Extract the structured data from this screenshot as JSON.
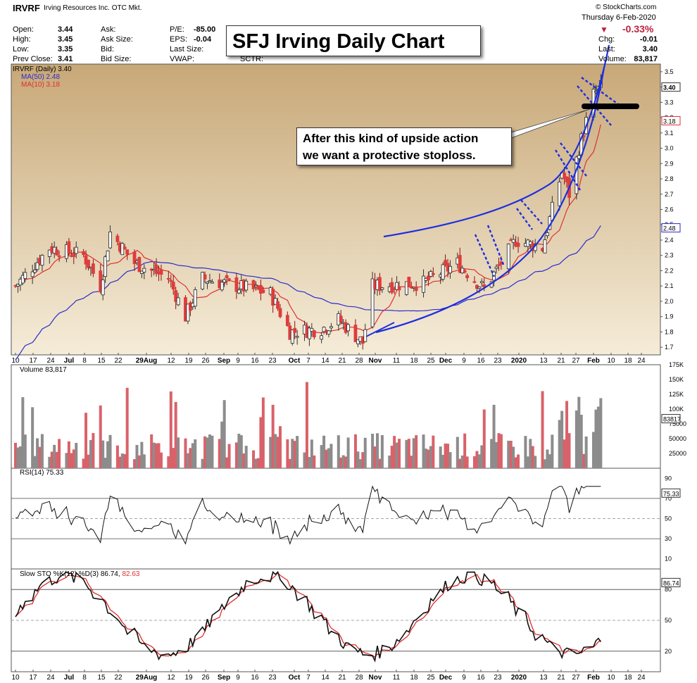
{
  "header": {
    "symbol": "IRVRF",
    "company": "Irving Resources Inc.  OTC Mkt.",
    "source": "© StockCharts.com",
    "date": "Thursday   6-Feb-2020",
    "change_pct": "-0.33%",
    "stats_left": [
      {
        "label": "Open:",
        "value": "3.44"
      },
      {
        "label": "High:",
        "value": "3.45"
      },
      {
        "label": "Low:",
        "value": "3.35"
      },
      {
        "label": "Prev Close:",
        "value": "3.41"
      }
    ],
    "stats_mid": [
      {
        "label": "Ask:",
        "value": ""
      },
      {
        "label": "Ask Size:",
        "value": ""
      },
      {
        "label": "Bid:",
        "value": ""
      },
      {
        "label": "Bid Size:",
        "value": ""
      }
    ],
    "stats_mid2": [
      {
        "label": "P/E:",
        "value": "-85.00"
      },
      {
        "label": "EPS:",
        "value": "-0.04"
      },
      {
        "label": "Last Size:",
        "value": ""
      },
      {
        "label": "VWAP:",
        "value": ""
      }
    ],
    "sctr_label": "SCTR:",
    "stats_right": [
      {
        "label": "Chg:",
        "value": "-0.01"
      },
      {
        "label": "Last:",
        "value": "3.40"
      },
      {
        "label": "Volume:",
        "value": "83,817"
      }
    ]
  },
  "title": "SFJ Irving Daily Chart",
  "annotation": [
    "After this kind of upside action",
    "we want a protective stoploss."
  ],
  "legend": {
    "main": "IRVRF (Daily) 3.40",
    "ma50": "MA(50) 2.48",
    "ma10": "MA(10) 3.18",
    "volume": "Volume 83,817",
    "rsi": "RSI(14) 75.33",
    "sto_prefix": "Slow STO %K(12) %D(3) 86.74, ",
    "sto_d": "82.63"
  },
  "price_badges": {
    "last": "3.40",
    "ma10": "3.18",
    "ma50": "2.48",
    "volume": "83817",
    "rsi": "75.33",
    "sto": "86.74"
  },
  "colors": {
    "up": "#808080",
    "down": "#e03c3c",
    "ma50": "#2b2bcc",
    "ma10": "#e03030",
    "trend": "#1c2ee0",
    "bg_top": "#c8a878",
    "bg_bottom": "#f5ecd8"
  },
  "x_axis_labels": [
    "10",
    "17",
    "24",
    "Jul",
    "8",
    "15",
    "22",
    "29Aug",
    "12",
    "19",
    "26",
    "Sep",
    "9",
    "16",
    "23",
    "Oct",
    "7",
    "14",
    "21",
    "28",
    "Nov",
    "11",
    "18",
    "25",
    "Dec",
    "9",
    "16",
    "23",
    "2020",
    "13",
    "21",
    "27",
    "Feb",
    "10",
    "18",
    "24"
  ],
  "price_ticks": [
    "3.5",
    "3.4",
    "3.3",
    "3.2",
    "3.1",
    "3.0",
    "2.9",
    "2.8",
    "2.7",
    "2.6",
    "2.5",
    "2.4",
    "2.3",
    "2.2",
    "2.1",
    "2.0",
    "1.9",
    "1.8",
    "1.7"
  ],
  "volume_ticks": [
    "175K",
    "150K",
    "125K",
    "100K",
    "75000",
    "50000",
    "25000"
  ],
  "rsi_ticks": [
    "90",
    "70",
    "50",
    "30",
    "10"
  ],
  "sto_ticks": [
    "80",
    "50",
    "20"
  ],
  "chart_data": {
    "type": "candlestick",
    "title": "SFJ Irving Daily Chart",
    "symbol": "IRVRF",
    "date_range": "Jun 2019 - 6 Feb 2020",
    "close_points": [
      {
        "date": "2019-06-10",
        "close": 2.1
      },
      {
        "date": "2019-06-24",
        "close": 2.35
      },
      {
        "date": "2019-07-08",
        "close": 2.3
      },
      {
        "date": "2019-07-15",
        "close": 2.1
      },
      {
        "date": "2019-07-19",
        "close": 2.45
      },
      {
        "date": "2019-07-29",
        "close": 2.25
      },
      {
        "date": "2019-08-12",
        "close": 2.15
      },
      {
        "date": "2019-08-19",
        "close": 1.9
      },
      {
        "date": "2019-08-26",
        "close": 2.15
      },
      {
        "date": "2019-09-09",
        "close": 2.1
      },
      {
        "date": "2019-09-23",
        "close": 2.05
      },
      {
        "date": "2019-10-01",
        "close": 1.8
      },
      {
        "date": "2019-10-14",
        "close": 1.82
      },
      {
        "date": "2019-10-21",
        "close": 1.88
      },
      {
        "date": "2019-10-31",
        "close": 1.73
      },
      {
        "date": "2019-11-04",
        "close": 2.1
      },
      {
        "date": "2019-11-25",
        "close": 2.12
      },
      {
        "date": "2019-12-09",
        "close": 2.25
      },
      {
        "date": "2019-12-20",
        "close": 2.08
      },
      {
        "date": "2020-01-02",
        "close": 2.4
      },
      {
        "date": "2020-01-13",
        "close": 2.35
      },
      {
        "date": "2020-01-21",
        "close": 2.85
      },
      {
        "date": "2020-01-24",
        "close": 2.7
      },
      {
        "date": "2020-01-28",
        "close": 3.0
      },
      {
        "date": "2020-02-03",
        "close": 3.35
      },
      {
        "date": "2020-02-06",
        "close": 3.4
      }
    ],
    "ma50_last": 2.48,
    "ma10_last": 3.18,
    "volume_last": 83817,
    "rsi_last": 75.33,
    "sto_k_last": 86.74,
    "sto_d_last": 82.63,
    "ylim": [
      1.65,
      3.55
    ],
    "volume_ylim": [
      0,
      175000
    ],
    "rsi_ylim": [
      0,
      100
    ],
    "sto_ylim": [
      0,
      100
    ]
  }
}
